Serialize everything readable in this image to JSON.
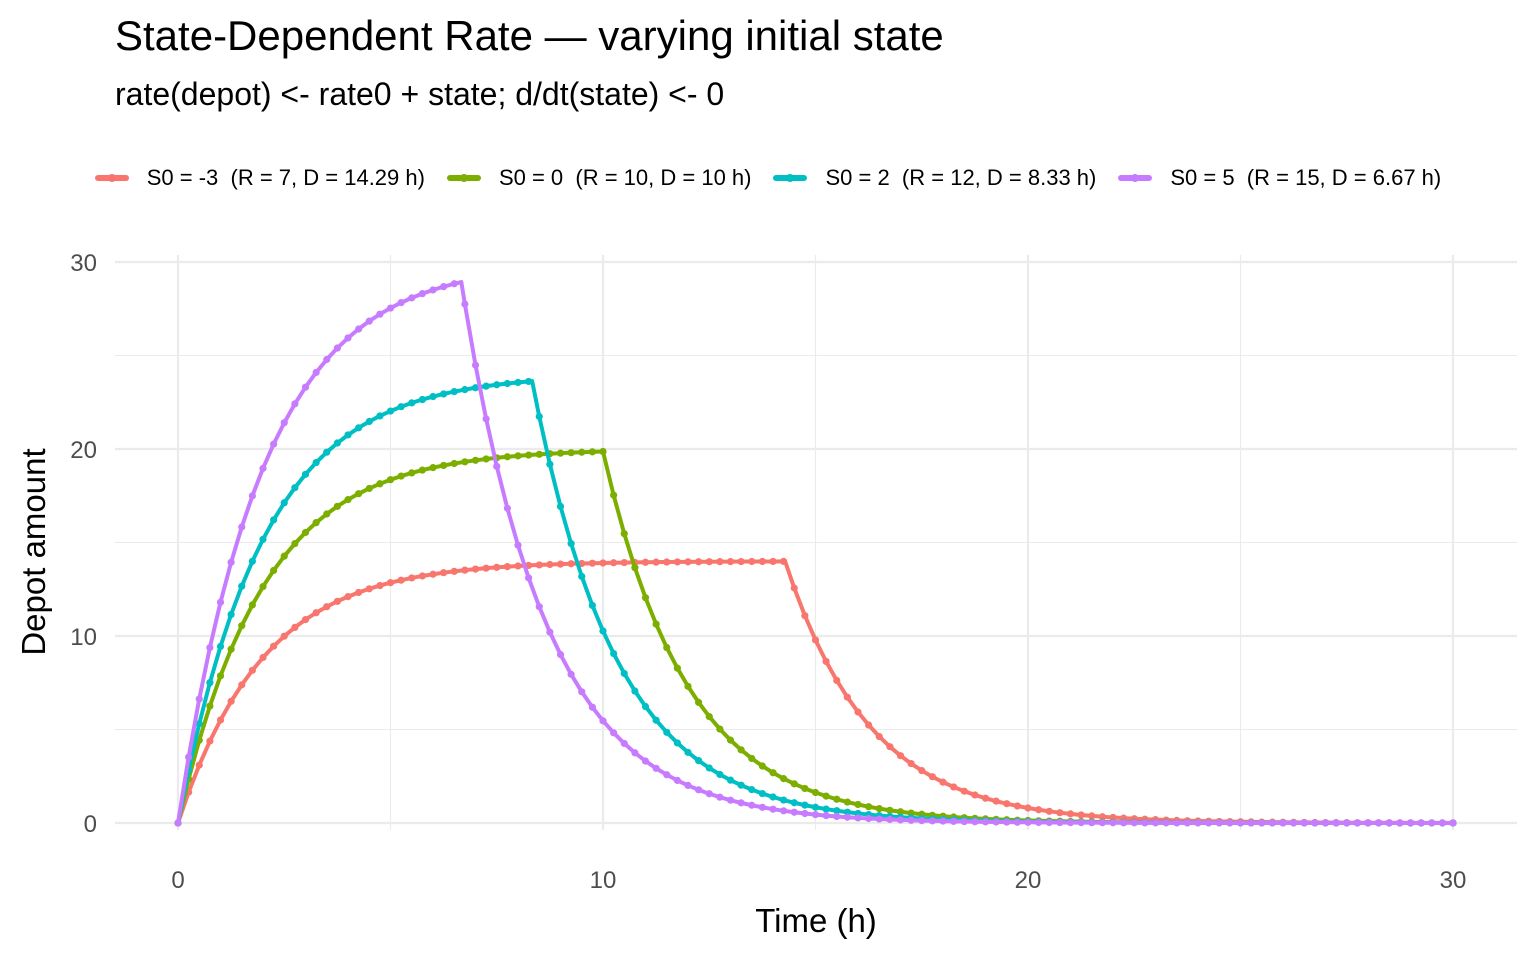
{
  "chart_data": {
    "type": "line",
    "title": "State-Dependent Rate — varying initial state",
    "subtitle": "rate(depot) <- rate0 + state;   d/dt(state) <- 0",
    "xlabel": "Time (h)",
    "ylabel": "Depot amount",
    "xlim": [
      0,
      30
    ],
    "ylim": [
      0,
      30
    ],
    "x_ticks": [
      "0",
      "10",
      "20",
      "30"
    ],
    "y_ticks": [
      "0",
      "10",
      "20",
      "30"
    ],
    "grid": true,
    "legend_position": "top",
    "model": {
      "k": 0.5,
      "x_step": 0.25
    },
    "x": [
      0,
      1,
      2,
      3,
      4,
      5,
      6,
      7,
      8,
      9,
      10,
      11,
      12,
      13,
      14,
      15,
      16,
      17,
      18,
      19,
      20,
      21,
      22,
      23,
      24,
      25,
      26,
      27,
      28,
      29,
      30
    ],
    "series": [
      {
        "name": "S0 = -3  (R = 7, D = 14.29 h)",
        "color": "#F8766D",
        "R": 7,
        "D": 14.2857,
        "values": [
          0,
          5.51,
          8.85,
          10.88,
          12.11,
          12.85,
          13.3,
          13.58,
          13.74,
          13.84,
          13.91,
          13.94,
          13.97,
          13.98,
          13.99,
          9.79,
          5.94,
          3.6,
          2.18,
          1.32,
          0.8,
          0.49,
          0.3,
          0.18,
          0.11,
          0.07,
          0.04,
          0.02,
          0.01,
          0.01,
          0.0
        ]
      },
      {
        "name": "S0 = 0  (R = 10, D = 10 h)",
        "color": "#7CAE00",
        "R": 10,
        "D": 10,
        "values": [
          0,
          7.87,
          12.64,
          15.54,
          17.29,
          18.36,
          19.0,
          19.4,
          19.63,
          19.78,
          19.87,
          12.05,
          7.31,
          4.43,
          2.69,
          1.63,
          0.99,
          0.6,
          0.36,
          0.22,
          0.13,
          0.08,
          0.05,
          0.03,
          0.02,
          0.01,
          0.01,
          0,
          0,
          0,
          0
        ]
      },
      {
        "name": "S0 = 2  (R = 12, D = 8.33 h)",
        "color": "#00BFC4",
        "R": 12,
        "D": 8.3333,
        "values": [
          0,
          9.44,
          15.17,
          18.64,
          20.75,
          22.03,
          22.8,
          23.28,
          23.56,
          16.93,
          10.27,
          6.23,
          3.78,
          2.29,
          1.39,
          0.84,
          0.51,
          0.31,
          0.19,
          0.11,
          0.07,
          0.04,
          0.03,
          0.02,
          0.01,
          0.01,
          0,
          0,
          0,
          0,
          0
        ]
      },
      {
        "name": "S0 = 5  (R = 15, D = 6.67 h)",
        "color": "#C77CFF",
        "R": 15,
        "D": 6.6667,
        "values": [
          0,
          11.8,
          18.96,
          23.31,
          25.94,
          27.54,
          28.51,
          24.49,
          14.85,
          9.01,
          5.46,
          3.31,
          2.01,
          1.22,
          0.74,
          0.45,
          0.27,
          0.16,
          0.1,
          0.06,
          0.04,
          0.02,
          0.01,
          0.01,
          0,
          0,
          0,
          0,
          0,
          0,
          0
        ]
      }
    ]
  }
}
